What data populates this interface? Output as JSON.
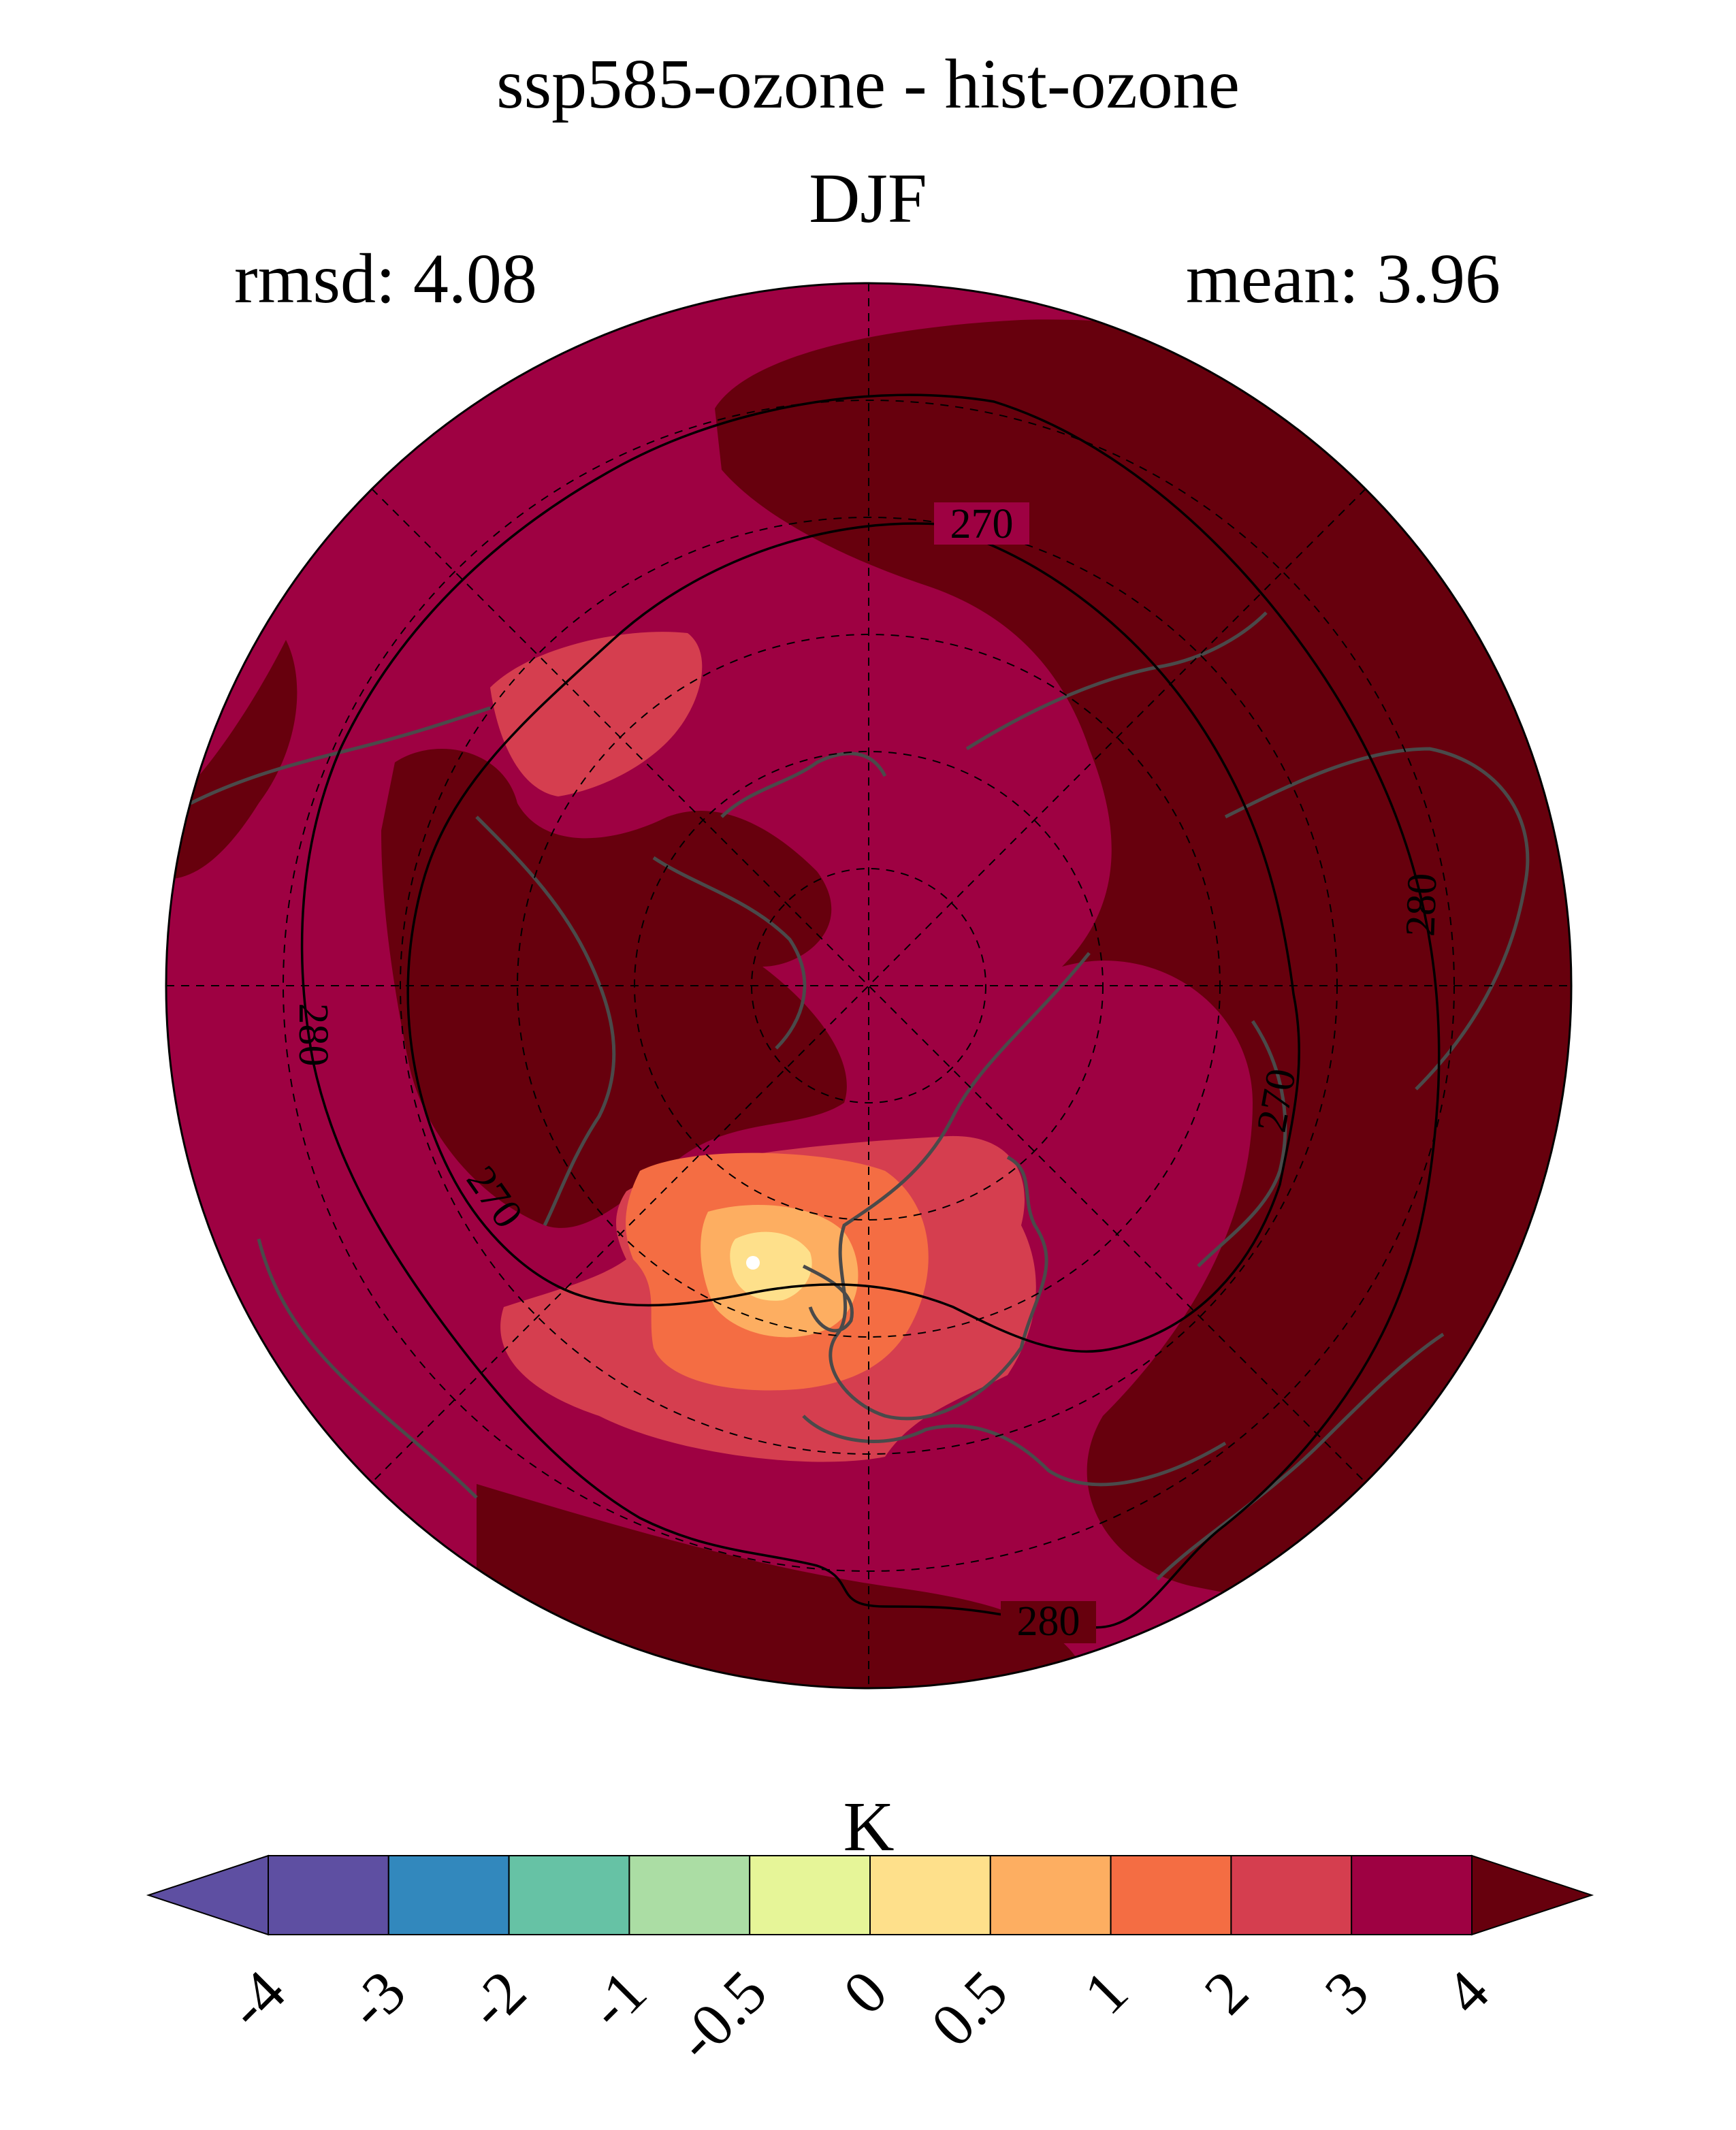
{
  "chart_data": {
    "type": "filled contour map (north polar stereographic)",
    "title": "ssp585-ozone - hist-ozone",
    "subtitle": "DJF",
    "rmsd_label": "rmsd: 4.08",
    "mean_label": "mean: 3.96",
    "stats": {
      "rmsd": 4.08,
      "mean": 3.96
    },
    "colorbar": {
      "unit": "K",
      "levels": [
        -4,
        -3,
        -2,
        -1,
        -0.5,
        0,
        0.5,
        1,
        2,
        3,
        4
      ],
      "tick_labels": [
        "-4",
        "-3",
        "-2",
        "-1",
        "-0.5",
        "0",
        "0.5",
        "1",
        "2",
        "3",
        "4"
      ],
      "colors": [
        "#5e4fa2",
        "#3288bd",
        "#66c2a5",
        "#abdda4",
        "#e6f598",
        "#fee08b",
        "#fdae61",
        "#f46d43",
        "#d53e4f",
        "#9e0142"
      ],
      "under_color": "#5e4fa2",
      "over_color": "#67000d",
      "extend": "both"
    },
    "contour_lines": {
      "levels": [
        270,
        280
      ],
      "labels": [
        "270",
        "280",
        "280",
        "270",
        "270",
        "280"
      ]
    },
    "field_description_levels": {
      "background_class": "3 to 4",
      "dominant_high_class": "> 4",
      "north_atlantic_max_class": "0.5 to 1",
      "local_min_point": "< 0.5"
    }
  },
  "colors": {
    "band_3_4": "#9e0142",
    "band_gt_4": "#67000d",
    "band_2_3": "#d53e4f",
    "band_1_2": "#f46d43",
    "band_05_1": "#fdae61",
    "band_0_05": "#fee08b",
    "coastline": "#4a4a4a",
    "contour": "#000000"
  }
}
